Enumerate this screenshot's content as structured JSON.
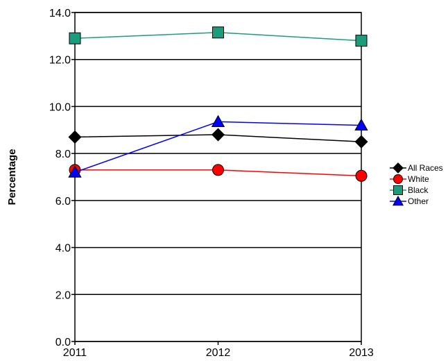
{
  "chart_data": {
    "type": "line",
    "x": [
      "2011",
      "2012",
      "2013"
    ],
    "series": [
      {
        "name": "All Races",
        "values": [
          8.7,
          8.8,
          8.5
        ],
        "color": "#000000",
        "marker": "diamond"
      },
      {
        "name": "White",
        "values": [
          7.3,
          7.3,
          7.05
        ],
        "color": "#ff0000",
        "marker": "circle"
      },
      {
        "name": "Black",
        "values": [
          12.9,
          13.15,
          12.8
        ],
        "color": "#1a9c7d",
        "marker": "square"
      },
      {
        "name": "Other",
        "values": [
          7.2,
          9.35,
          9.2
        ],
        "color": "#0000ff",
        "marker": "triangle"
      }
    ],
    "title": "",
    "xlabel": "",
    "ylabel": "Percentage",
    "ylim": [
      0,
      14
    ],
    "yticks": [
      "0.0",
      "2.0",
      "4.0",
      "6.0",
      "8.0",
      "10.0",
      "12.0",
      "14.0"
    ],
    "grid": "horizontal",
    "legend_position": "right"
  }
}
